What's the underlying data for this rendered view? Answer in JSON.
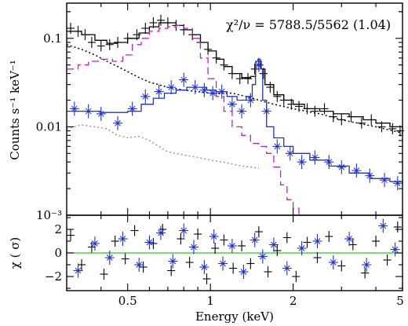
{
  "chart_data": [
    {
      "type": "line",
      "panel": "spectrum",
      "xscale": "log",
      "yscale": "log",
      "xlim": [
        0.3,
        5
      ],
      "ylim": [
        0.001,
        0.25
      ],
      "xticks": [
        0.5,
        1,
        2,
        5
      ],
      "ylabel": "Counts s⁻¹ keV⁻¹",
      "yticklabels": [
        {
          "value": 0.1,
          "label": "0.1"
        },
        {
          "value": 0.01,
          "label": "0.01"
        },
        {
          "value": 0.001,
          "label": "10⁻³"
        }
      ],
      "annotation": "χ²/ν = 5788.5/5562 (1.04)",
      "series": [
        {
          "style": "data-crosses",
          "color": "#000000",
          "x": [
            0.31,
            0.33,
            0.35,
            0.37,
            0.4,
            0.43,
            0.46,
            0.5,
            0.54,
            0.58,
            0.62,
            0.66,
            0.7,
            0.75,
            0.8,
            0.86,
            0.92,
            0.98,
            1.05,
            1.12,
            1.2,
            1.28,
            1.37,
            1.45,
            1.5,
            1.56,
            1.65,
            1.75,
            1.85,
            1.97,
            2.1,
            2.25,
            2.4,
            2.6,
            2.8,
            3.0,
            3.25,
            3.55,
            3.85,
            4.2,
            4.6,
            4.9
          ],
          "y": [
            0.13,
            0.12,
            0.11,
            0.09,
            0.082,
            0.085,
            0.09,
            0.1,
            0.11,
            0.13,
            0.15,
            0.16,
            0.15,
            0.14,
            0.125,
            0.11,
            0.09,
            0.075,
            0.06,
            0.05,
            0.04,
            0.035,
            0.035,
            0.045,
            0.05,
            0.04,
            0.028,
            0.022,
            0.02,
            0.018,
            0.017,
            0.016,
            0.015,
            0.016,
            0.013,
            0.012,
            0.013,
            0.011,
            0.012,
            0.01,
            0.0095,
            0.009
          ]
        },
        {
          "style": "model-step",
          "color": "#000000",
          "x": [
            0.3,
            0.34,
            0.38,
            0.42,
            0.46,
            0.5,
            0.55,
            0.6,
            0.65,
            0.7,
            0.75,
            0.8,
            0.86,
            0.92,
            0.98,
            1.05,
            1.12,
            1.2,
            1.3,
            1.4,
            1.46,
            1.5,
            1.53,
            1.58,
            1.7,
            1.85,
            2.0,
            2.2,
            2.5,
            2.8,
            3.2,
            3.6,
            4.0,
            4.5,
            5.0
          ],
          "y": [
            0.12,
            0.11,
            0.095,
            0.088,
            0.09,
            0.1,
            0.115,
            0.135,
            0.15,
            0.15,
            0.14,
            0.125,
            0.11,
            0.09,
            0.072,
            0.058,
            0.048,
            0.04,
            0.036,
            0.037,
            0.05,
            0.055,
            0.045,
            0.03,
            0.023,
            0.02,
            0.018,
            0.016,
            0.015,
            0.014,
            0.013,
            0.012,
            0.011,
            0.01,
            0.0095
          ]
        },
        {
          "style": "dotted",
          "color": "#000000",
          "x": [
            0.3,
            0.34,
            0.38,
            0.42,
            0.46,
            0.5,
            0.55,
            0.6,
            0.7,
            0.8,
            0.9,
            1.0,
            1.1,
            1.2,
            1.35,
            1.5,
            1.7,
            2.0,
            2.5,
            3.0,
            4.0,
            5.0
          ],
          "y": [
            0.085,
            0.075,
            0.065,
            0.055,
            0.048,
            0.042,
            0.036,
            0.032,
            0.028,
            0.026,
            0.025,
            0.024,
            0.024,
            0.024,
            0.022,
            0.02,
            0.018,
            0.016,
            0.014,
            0.012,
            0.01,
            0.0085
          ]
        },
        {
          "style": "dashed-step",
          "color": "#c020c0",
          "x": [
            0.3,
            0.33,
            0.36,
            0.4,
            0.44,
            0.48,
            0.52,
            0.56,
            0.6,
            0.65,
            0.7,
            0.75,
            0.8,
            0.86,
            0.92,
            0.98,
            1.05,
            1.12,
            1.2,
            1.3,
            1.4,
            1.5,
            1.6,
            1.7,
            1.8,
            1.9,
            2.0,
            2.1
          ],
          "y": [
            0.045,
            0.05,
            0.055,
            0.058,
            0.055,
            0.065,
            0.085,
            0.1,
            0.12,
            0.13,
            0.135,
            0.14,
            0.13,
            0.1,
            0.06,
            0.035,
            0.022,
            0.015,
            0.01,
            0.008,
            0.0065,
            0.006,
            0.005,
            0.0035,
            0.0022,
            0.0015,
            0.0012,
            0.001
          ]
        },
        {
          "style": "data-stars",
          "color": "#2030d0",
          "x": [
            0.32,
            0.36,
            0.4,
            0.46,
            0.52,
            0.58,
            0.65,
            0.72,
            0.8,
            0.88,
            0.95,
            1.02,
            1.1,
            1.2,
            1.3,
            1.4,
            1.5,
            1.6,
            1.75,
            1.95,
            2.15,
            2.4,
            2.7,
            3.0,
            3.4,
            3.8,
            4.3,
            4.8
          ],
          "y": [
            0.016,
            0.015,
            0.014,
            0.011,
            0.016,
            0.022,
            0.025,
            0.028,
            0.034,
            0.028,
            0.026,
            0.024,
            0.025,
            0.018,
            0.015,
            0.02,
            0.05,
            0.015,
            0.006,
            0.005,
            0.004,
            0.0045,
            0.004,
            0.0035,
            0.0032,
            0.0028,
            0.0025,
            0.0023
          ]
        },
        {
          "style": "model-step",
          "color": "#2030d0",
          "x": [
            0.3,
            0.4,
            0.5,
            0.56,
            0.62,
            0.68,
            0.75,
            0.82,
            0.9,
            0.97,
            1.05,
            1.15,
            1.25,
            1.35,
            1.42,
            1.46,
            1.49,
            1.52,
            1.55,
            1.6,
            1.7,
            1.85,
            2.0,
            2.3,
            2.7,
            3.2,
            3.8,
            4.5,
            5.0
          ],
          "y": [
            0.015,
            0.0145,
            0.015,
            0.018,
            0.021,
            0.024,
            0.026,
            0.028,
            0.028,
            0.026,
            0.025,
            0.022,
            0.02,
            0.022,
            0.03,
            0.055,
            0.058,
            0.045,
            0.02,
            0.01,
            0.0075,
            0.006,
            0.005,
            0.0042,
            0.0036,
            0.003,
            0.0026,
            0.0024,
            0.0022
          ]
        },
        {
          "style": "dotted",
          "color": "#999999",
          "x": [
            0.3,
            0.34,
            0.38,
            0.42,
            0.46,
            0.5,
            0.55,
            0.6,
            0.65,
            0.7,
            0.8,
            0.9,
            1.0,
            1.1,
            1.2,
            1.3,
            1.4,
            1.5
          ],
          "y": [
            0.0095,
            0.0105,
            0.01,
            0.0095,
            0.008,
            0.0075,
            0.0078,
            0.007,
            0.006,
            0.0052,
            0.0048,
            0.0045,
            0.0042,
            0.004,
            0.0038,
            0.0036,
            0.0035,
            0.0034
          ]
        }
      ]
    },
    {
      "type": "scatter",
      "panel": "residuals",
      "xscale": "log",
      "xlim": [
        0.3,
        5
      ],
      "ylim": [
        -3.2,
        3.2
      ],
      "xlabel": "Energy (keV)",
      "ylabel": "χ ( σ)",
      "xticks": [
        0.5,
        1,
        2,
        5
      ],
      "xticklabels": [
        "0.5",
        "1",
        "2",
        "5"
      ],
      "yticks": [
        -2,
        0,
        2
      ],
      "yticklabels": [
        "−2",
        "0",
        "2"
      ],
      "zero_line_color": "#22cc22",
      "series": [
        {
          "style": "data-crosses",
          "color": "#000000",
          "x": [
            0.31,
            0.34,
            0.37,
            0.41,
            0.45,
            0.49,
            0.53,
            0.57,
            0.62,
            0.67,
            0.72,
            0.78,
            0.84,
            0.9,
            0.97,
            1.04,
            1.12,
            1.21,
            1.3,
            1.4,
            1.5,
            1.62,
            1.75,
            1.9,
            2.05,
            2.25,
            2.45,
            2.7,
            3.0,
            3.3,
            3.65,
            4.0,
            4.4,
            4.8
          ],
          "y": [
            1.5,
            -1.0,
            0.5,
            -1.8,
            1.0,
            -0.5,
            1.9,
            -1.2,
            0.8,
            2.0,
            -1.5,
            1.2,
            -0.8,
            1.6,
            -2.2,
            0.4,
            1.1,
            -1.3,
            0.6,
            -0.9,
            1.8,
            -1.6,
            0.2,
            1.3,
            -2.0,
            0.9,
            -0.4,
            1.4,
            -1.1,
            0.7,
            -1.7,
            1.0,
            -0.6,
            2.2
          ]
        },
        {
          "style": "data-stars",
          "color": "#2030d0",
          "x": [
            0.33,
            0.38,
            0.43,
            0.48,
            0.55,
            0.6,
            0.66,
            0.73,
            0.8,
            0.87,
            0.95,
            1.03,
            1.11,
            1.2,
            1.32,
            1.45,
            1.55,
            1.7,
            1.9,
            2.15,
            2.45,
            2.8,
            3.2,
            3.7,
            4.25,
            4.7
          ],
          "y": [
            -1.5,
            0.8,
            -0.4,
            1.2,
            -1.0,
            0.9,
            1.7,
            -0.7,
            1.9,
            0.5,
            -1.2,
            1.4,
            -0.9,
            0.6,
            -1.6,
            1.1,
            -0.3,
            0.7,
            -1.3,
            0.4,
            1.0,
            -0.8,
            1.2,
            -1.0,
            2.3,
            0.3
          ]
        }
      ]
    }
  ]
}
